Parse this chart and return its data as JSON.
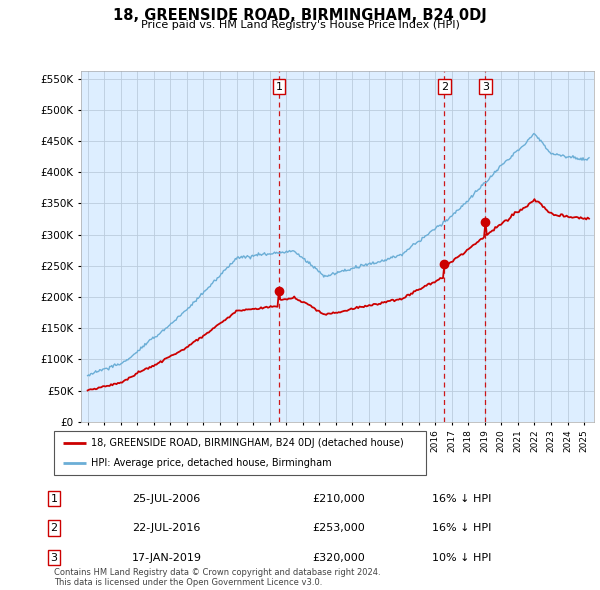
{
  "title": "18, GREENSIDE ROAD, BIRMINGHAM, B24 0DJ",
  "subtitle": "Price paid vs. HM Land Registry's House Price Index (HPI)",
  "hpi_color": "#6baed6",
  "price_color": "#cc0000",
  "dashed_line_color": "#cc0000",
  "chart_bg_color": "#ddeeff",
  "background_color": "#ffffff",
  "grid_color": "#bbccdd",
  "ylim": [
    0,
    562500
  ],
  "yticks": [
    0,
    50000,
    100000,
    150000,
    200000,
    250000,
    300000,
    350000,
    400000,
    450000,
    500000,
    550000
  ],
  "xlim_min": 1994.6,
  "xlim_max": 2025.6,
  "transactions": [
    {
      "num": 1,
      "date_dec": 2006.56,
      "price": 210000,
      "label": "25-JUL-2006",
      "price_str": "£210,000",
      "pct": "16% ↓ HPI"
    },
    {
      "num": 2,
      "date_dec": 2016.56,
      "price": 253000,
      "label": "22-JUL-2016",
      "price_str": "£253,000",
      "pct": "16% ↓ HPI"
    },
    {
      "num": 3,
      "date_dec": 2019.04,
      "price": 320000,
      "label": "17-JAN-2019",
      "price_str": "£320,000",
      "pct": "10% ↓ HPI"
    }
  ],
  "legend_line1": "18, GREENSIDE ROAD, BIRMINGHAM, B24 0DJ (detached house)",
  "legend_line2": "HPI: Average price, detached house, Birmingham",
  "footer": "Contains HM Land Registry data © Crown copyright and database right 2024.\nThis data is licensed under the Open Government Licence v3.0."
}
